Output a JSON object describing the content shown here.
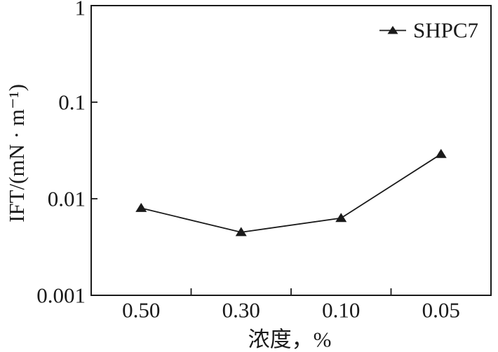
{
  "chart_data": {
    "type": "line",
    "title": "",
    "xlabel": "浓度，%",
    "ylabel": "IFT/(mN · m⁻¹)",
    "categories": [
      "0.50",
      "0.30",
      "0.10",
      "0.05"
    ],
    "series": [
      {
        "name": "SHPC7",
        "values": [
          0.008,
          0.0045,
          0.0063,
          0.029
        ]
      }
    ],
    "y_scale": "log",
    "ylim": [
      0.001,
      1
    ],
    "y_ticks": [
      {
        "value": 1,
        "label": "1"
      },
      {
        "value": 0.1,
        "label": "0.1"
      },
      {
        "value": 0.01,
        "label": "0.01"
      },
      {
        "value": 0.001,
        "label": "0.001"
      }
    ],
    "grid": "off",
    "legend_position": "top-right-inside",
    "marker": "filled-triangle-up",
    "line_color": "#1a1a1a",
    "background_color": "#ffffff"
  }
}
